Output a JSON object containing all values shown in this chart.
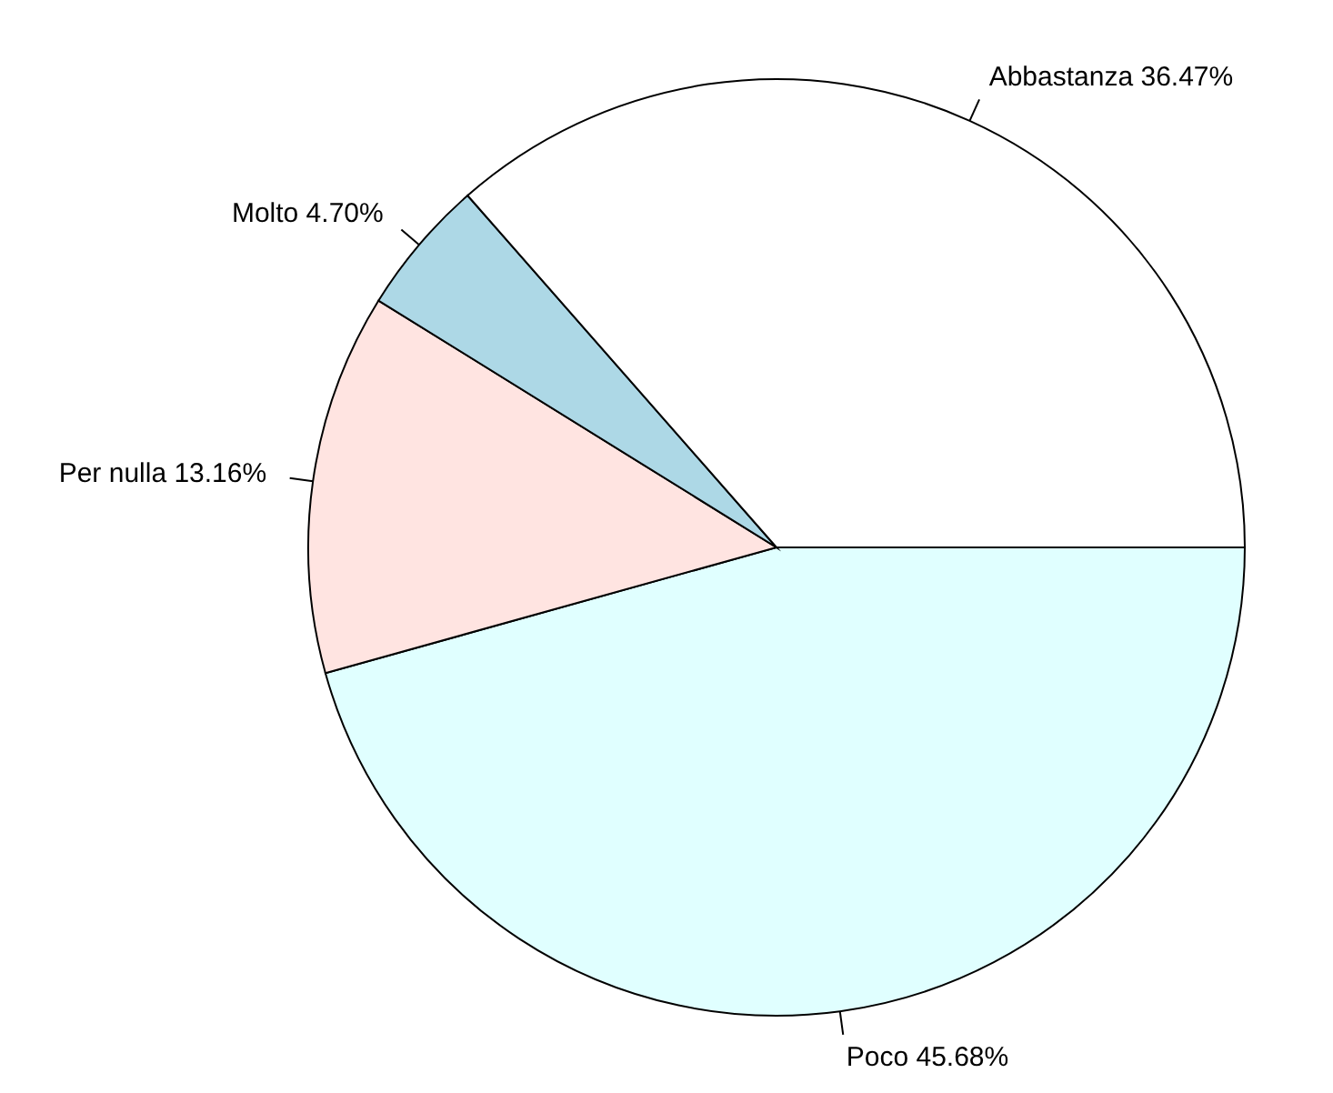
{
  "chart_data": {
    "type": "pie",
    "categories": [
      "Abbastanza",
      "Molto",
      "Per nulla",
      "Poco"
    ],
    "values": [
      36.47,
      4.7,
      13.16,
      45.68
    ],
    "value_labels": [
      "36.47%",
      "4.70%",
      "13.16%",
      "45.68%"
    ],
    "colors": [
      "#ffffff",
      "#add8e6",
      "#ffe4e1",
      "#e0ffff"
    ],
    "legend": false
  }
}
